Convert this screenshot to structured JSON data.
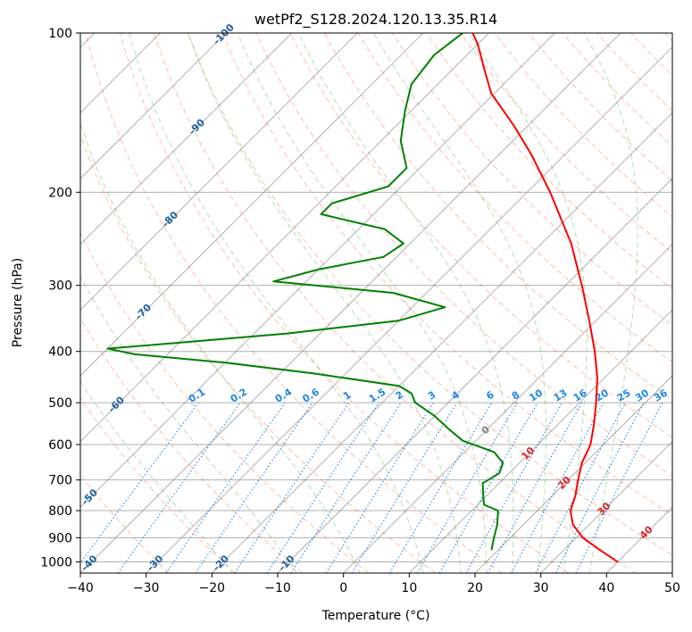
{
  "chart_data": {
    "type": "line",
    "subtype": "skew-T log-P diagram",
    "title": "wetPf2_S128.2024.120.13.35.R14",
    "xlabel": "Temperature (°C)",
    "ylabel": "Pressure (hPa)",
    "xlim": [
      -40,
      50
    ],
    "ylim": [
      1050,
      100
    ],
    "y_scale": "log",
    "x_ticks": [
      -40,
      -30,
      -20,
      -10,
      0,
      10,
      20,
      30,
      40,
      50
    ],
    "y_ticks": [
      1000,
      900,
      800,
      700,
      600,
      500,
      400,
      300,
      200,
      100
    ],
    "grid": true,
    "series": [
      {
        "role": "temperature",
        "color": "#ff0000",
        "points": [
          [
            1000,
            40.0
          ],
          [
            950,
            35.5
          ],
          [
            900,
            31.0
          ],
          [
            850,
            27.5
          ],
          [
            800,
            25.0
          ],
          [
            750,
            23.5
          ],
          [
            700,
            21.5
          ],
          [
            650,
            19.5
          ],
          [
            600,
            18.0
          ],
          [
            550,
            15.5
          ],
          [
            500,
            12.5
          ],
          [
            450,
            9.0
          ],
          [
            400,
            4.5
          ],
          [
            350,
            -1.0
          ],
          [
            300,
            -7.5
          ],
          [
            250,
            -15.5
          ],
          [
            200,
            -26.5
          ],
          [
            170,
            -35.0
          ],
          [
            150,
            -42.0
          ],
          [
            130,
            -50.5
          ],
          [
            115,
            -56.0
          ],
          [
            105,
            -60.0
          ],
          [
            100,
            -62.5
          ]
        ]
      },
      {
        "role": "dewpoint",
        "color": "#008000",
        "points": [
          [
            950,
            19.0
          ],
          [
            900,
            17.5
          ],
          [
            850,
            16.0
          ],
          [
            800,
            14.0
          ],
          [
            780,
            11.0
          ],
          [
            760,
            10.0
          ],
          [
            740,
            9.0
          ],
          [
            710,
            7.5
          ],
          [
            680,
            8.5
          ],
          [
            650,
            7.5
          ],
          [
            620,
            4.5
          ],
          [
            590,
            -2.0
          ],
          [
            560,
            -6.0
          ],
          [
            530,
            -10.0
          ],
          [
            500,
            -15.0
          ],
          [
            480,
            -17.0
          ],
          [
            465,
            -20.0
          ],
          [
            440,
            -35.0
          ],
          [
            420,
            -50.0
          ],
          [
            405,
            -65.0
          ],
          [
            395,
            -70.0
          ],
          [
            385,
            -60.0
          ],
          [
            370,
            -45.0
          ],
          [
            350,
            -30.0
          ],
          [
            330,
            -25.0
          ],
          [
            310,
            -35.0
          ],
          [
            295,
            -55.0
          ],
          [
            280,
            -50.0
          ],
          [
            265,
            -42.0
          ],
          [
            250,
            -41.0
          ],
          [
            235,
            -46.0
          ],
          [
            220,
            -58.0
          ],
          [
            210,
            -58.0
          ],
          [
            195,
            -52.0
          ],
          [
            180,
            -52.0
          ],
          [
            160,
            -57.0
          ],
          [
            140,
            -61.0
          ],
          [
            125,
            -64.0
          ],
          [
            110,
            -65.0
          ],
          [
            100,
            -64.0
          ]
        ]
      }
    ],
    "reference_lines": {
      "isotherms": {
        "color": "#808080"
      },
      "dry_adiabats": {
        "color": "#ff4500",
        "style": "dashed"
      },
      "moist_adiabats": {
        "color": "#2ca02c",
        "style": "dashed"
      },
      "mixing_ratio": {
        "color": "#1e88e5",
        "style": "dotted"
      }
    },
    "annotations": {
      "isotherm_labels": [
        "-100",
        "-90",
        "-80",
        "-70",
        "-60",
        "-50",
        "-40",
        "-30",
        "-20",
        "-10",
        "0",
        "10",
        "20",
        "30",
        "40"
      ],
      "mixing_ratio_labels": [
        "0.1",
        "0.2",
        "0.4",
        "0.6",
        "1",
        "1.5",
        "2",
        "3",
        "4",
        "6",
        "8",
        "10",
        "13",
        "16",
        "20",
        "25",
        "30",
        "36"
      ]
    }
  }
}
